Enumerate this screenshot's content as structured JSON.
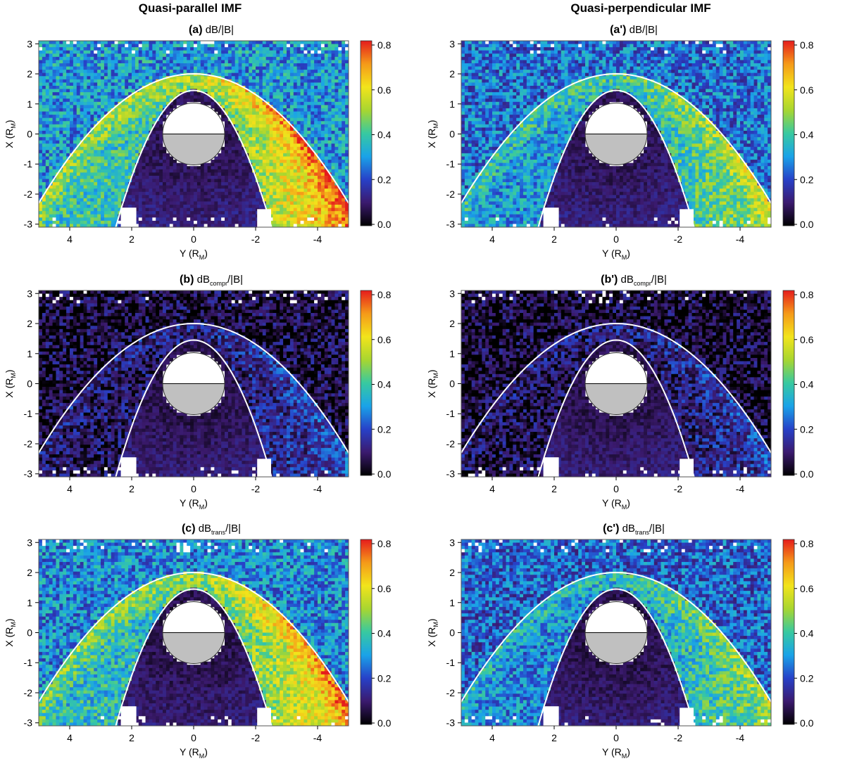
{
  "columns": {
    "left": "Quasi-parallel IMF",
    "right": "Quasi-perpendicular IMF"
  },
  "colorbar": {
    "ticks": [
      "0.0",
      "0.2",
      "0.4",
      "0.6",
      "0.8"
    ],
    "range": [
      0.0,
      0.8
    ],
    "colormap": [
      "#000000",
      "#3b1a6e",
      "#2741c8",
      "#1aa3e8",
      "#38c9a0",
      "#a8d630",
      "#f2e41b",
      "#f59a19",
      "#e51c1c"
    ]
  },
  "axes": {
    "xlabel_main": "Y (R",
    "xlabel_sub": "M",
    "xlabel_close": ")",
    "ylabel_main": "X (R",
    "ylabel_sub": "M",
    "ylabel_close": ")",
    "xticks": [
      "4",
      "2",
      "0",
      "-2",
      "-4"
    ],
    "yticks": [
      "3",
      "2",
      "1",
      "0",
      "-1",
      "-2",
      "-3"
    ],
    "xlim": [
      5,
      -5
    ],
    "ylim": [
      -3.1,
      3.1
    ]
  },
  "panels": [
    {
      "label": "(a)",
      "pre": "dB",
      "sub": "",
      "post": "/|B|"
    },
    {
      "label": "(a')",
      "pre": "dB",
      "sub": "",
      "post": "/|B|"
    },
    {
      "label": "(b)",
      "pre": "dB",
      "sub": "compr",
      "post": "/|B|"
    },
    {
      "label": "(b')",
      "pre": "dB",
      "sub": "compr",
      "post": "/|B|"
    },
    {
      "label": "(c)",
      "pre": "dB",
      "sub": "trans",
      "post": "/|B|"
    },
    {
      "label": "(c')",
      "pre": "dB",
      "sub": "trans",
      "post": "/|B|"
    }
  ],
  "chart_data": [
    {
      "type": "heatmap",
      "title": "(a) dB/|B|",
      "xlabel": "Y (RM)",
      "ylabel": "X (RM)",
      "xlim": [
        5,
        -5
      ],
      "ylim": [
        -3,
        3
      ],
      "colorbar_range": [
        0.0,
        0.8
      ],
      "sheath_peak": 0.75,
      "solar_wind_level": 0.3,
      "magnetosphere_level": 0.08,
      "boundaries": [
        "bow shock",
        "magnetopause"
      ]
    },
    {
      "type": "heatmap",
      "title": "(a') dB/|B|",
      "xlabel": "Y (RM)",
      "ylabel": "X (RM)",
      "xlim": [
        5,
        -5
      ],
      "ylim": [
        -3,
        3
      ],
      "colorbar_range": [
        0.0,
        0.8
      ],
      "sheath_peak": 0.55,
      "solar_wind_level": 0.25,
      "magnetosphere_level": 0.08,
      "boundaries": [
        "bow shock",
        "magnetopause"
      ]
    },
    {
      "type": "heatmap",
      "title": "(b) dBcompr/|B|",
      "xlabel": "Y (RM)",
      "ylabel": "X (RM)",
      "xlim": [
        5,
        -5
      ],
      "ylim": [
        -3,
        3
      ],
      "colorbar_range": [
        0.0,
        0.8
      ],
      "sheath_peak": 0.2,
      "solar_wind_level": 0.05,
      "magnetosphere_level": 0.07,
      "boundaries": [
        "bow shock",
        "magnetopause"
      ]
    },
    {
      "type": "heatmap",
      "title": "(b') dBcompr/|B|",
      "xlabel": "Y (RM)",
      "ylabel": "X (RM)",
      "xlim": [
        5,
        -5
      ],
      "ylim": [
        -3,
        3
      ],
      "colorbar_range": [
        0.0,
        0.8
      ],
      "sheath_peak": 0.18,
      "solar_wind_level": 0.04,
      "magnetosphere_level": 0.07,
      "boundaries": [
        "bow shock",
        "magnetopause"
      ]
    },
    {
      "type": "heatmap",
      "title": "(c) dBtrans/|B|",
      "xlabel": "Y (RM)",
      "ylabel": "X (RM)",
      "xlim": [
        5,
        -5
      ],
      "ylim": [
        -3,
        3
      ],
      "colorbar_range": [
        0.0,
        0.8
      ],
      "sheath_peak": 0.7,
      "solar_wind_level": 0.28,
      "magnetosphere_level": 0.07,
      "boundaries": [
        "bow shock",
        "magnetopause"
      ]
    },
    {
      "type": "heatmap",
      "title": "(c') dBtrans/|B|",
      "xlabel": "Y (RM)",
      "ylabel": "X (RM)",
      "xlim": [
        5,
        -5
      ],
      "ylim": [
        -3,
        3
      ],
      "colorbar_range": [
        0.0,
        0.8
      ],
      "sheath_peak": 0.5,
      "solar_wind_level": 0.23,
      "magnetosphere_level": 0.07,
      "boundaries": [
        "bow shock",
        "magnetopause"
      ]
    }
  ]
}
